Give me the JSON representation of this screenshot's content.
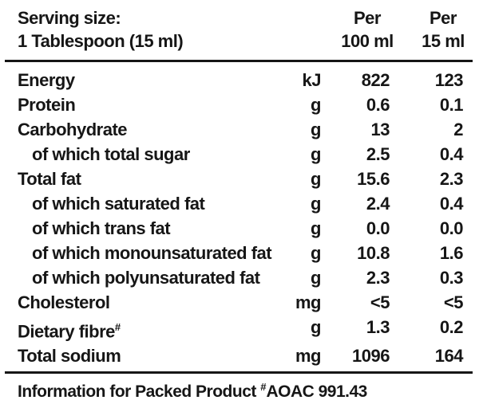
{
  "colors": {
    "ink": "#161616",
    "paper": "#ffffff"
  },
  "serving": {
    "line1": "Serving size:",
    "line2": "1 Tablespoon (15 ml)"
  },
  "columns": [
    {
      "line1": "Per",
      "line2": "100 ml"
    },
    {
      "line1": "Per",
      "line2": "15 ml"
    }
  ],
  "rows": [
    {
      "name": "Energy",
      "unit": "kJ",
      "per100": "822",
      "per15": "123",
      "indent": false
    },
    {
      "name": "Protein",
      "unit": "g",
      "per100": "0.6",
      "per15": "0.1",
      "indent": false
    },
    {
      "name": "Carbohydrate",
      "unit": "g",
      "per100": "13",
      "per15": "2",
      "indent": false
    },
    {
      "name": "of which total sugar",
      "unit": "g",
      "per100": "2.5",
      "per15": "0.4",
      "indent": true
    },
    {
      "name": "Total fat",
      "unit": "g",
      "per100": "15.6",
      "per15": "2.3",
      "indent": false
    },
    {
      "name": "of which saturated fat",
      "unit": "g",
      "per100": "2.4",
      "per15": "0.4",
      "indent": true
    },
    {
      "name": "of which trans fat",
      "unit": "g",
      "per100": "0.0",
      "per15": "0.0",
      "indent": true
    },
    {
      "name": "of which monounsaturated fat",
      "unit": "g",
      "per100": "10.8",
      "per15": "1.6",
      "indent": true
    },
    {
      "name": "of which polyunsaturated fat",
      "unit": "g",
      "per100": "2.3",
      "per15": "0.3",
      "indent": true
    },
    {
      "name": "Cholesterol",
      "unit": "mg",
      "per100": "<5",
      "per15": "<5",
      "indent": false
    },
    {
      "name": "Dietary fibre",
      "sup": "#",
      "unit": "g",
      "per100": "1.3",
      "per15": "0.2",
      "indent": false
    },
    {
      "name": "Total sodium",
      "unit": "mg",
      "per100": "1096",
      "per15": "164",
      "indent": false
    }
  ],
  "footer": {
    "prefix": "Information for Packed Product ",
    "sup": "#",
    "suffix": "AOAC 991.43"
  }
}
